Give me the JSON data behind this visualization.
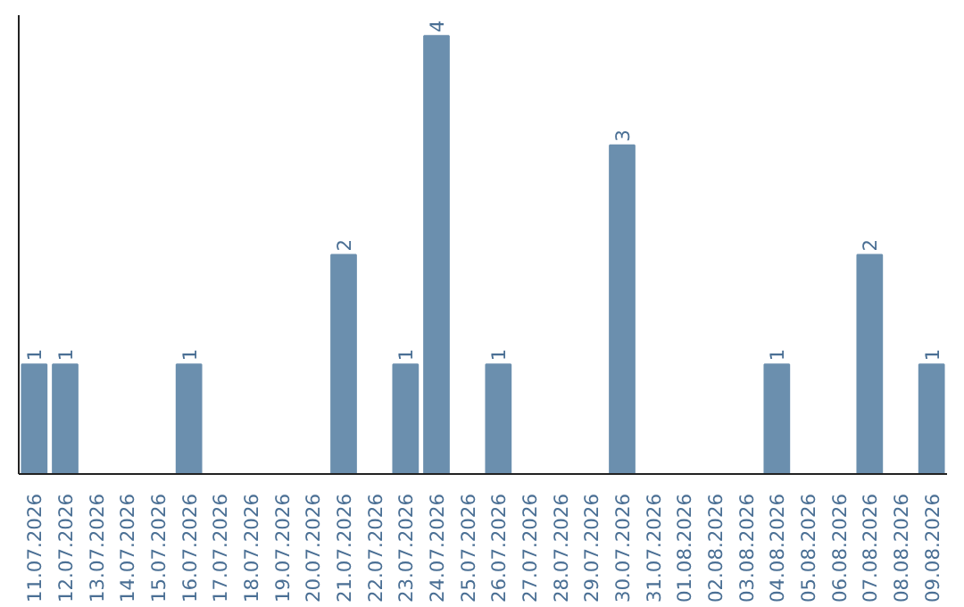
{
  "chart_data": {
    "type": "bar",
    "categories": [
      "11.07.2026",
      "12.07.2026",
      "13.07.2026",
      "14.07.2026",
      "15.07.2026",
      "16.07.2026",
      "17.07.2026",
      "18.07.2026",
      "19.07.2026",
      "20.07.2026",
      "21.07.2026",
      "22.07.2026",
      "23.07.2026",
      "24.07.2026",
      "25.07.2026",
      "26.07.2026",
      "27.07.2026",
      "28.07.2026",
      "29.07.2026",
      "30.07.2026",
      "31.07.2026",
      "01.08.2026",
      "02.08.2026",
      "03.08.2026",
      "04.08.2026",
      "05.08.2026",
      "06.08.2026",
      "07.08.2026",
      "08.08.2026",
      "09.08.2026"
    ],
    "values": [
      1,
      1,
      0,
      0,
      0,
      1,
      0,
      0,
      0,
      0,
      2,
      0,
      1,
      4,
      0,
      1,
      0,
      0,
      0,
      3,
      0,
      0,
      0,
      0,
      1,
      0,
      0,
      2,
      0,
      1
    ],
    "value_labels": [
      "1",
      "1",
      null,
      null,
      null,
      "1",
      null,
      null,
      null,
      null,
      "2",
      null,
      "1",
      "4",
      null,
      "1",
      null,
      null,
      null,
      "3",
      null,
      null,
      null,
      null,
      "1",
      null,
      null,
      "2",
      null,
      "1"
    ],
    "color": "#6b8fae",
    "grid": false
  }
}
